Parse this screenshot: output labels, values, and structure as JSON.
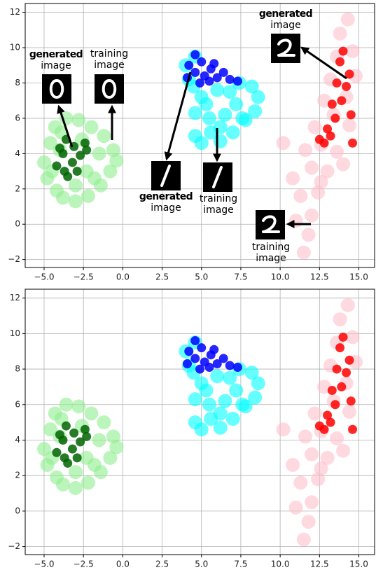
{
  "chart_data": [
    {
      "type": "scatter",
      "grid": true,
      "xlim": [
        -6.2,
        16.0
      ],
      "ylim": [
        -2.45,
        12.5
      ],
      "xticks": [
        {
          "value": -5,
          "label": "−5.0"
        },
        {
          "value": -2.5,
          "label": "−2.5"
        },
        {
          "value": 0,
          "label": "0.0"
        },
        {
          "value": 2.5,
          "label": "2.5"
        },
        {
          "value": 5,
          "label": "5.0"
        },
        {
          "value": 7.5,
          "label": "7.5"
        },
        {
          "value": 10,
          "label": "10.0"
        },
        {
          "value": 12.5,
          "label": "12.5"
        },
        {
          "value": 15,
          "label": "15.0"
        }
      ],
      "yticks": [
        {
          "value": -2,
          "label": "−2"
        },
        0,
        2,
        4,
        6,
        8,
        10,
        12
      ],
      "series": [
        {
          "color": "#90ee90",
          "x": [
            -5.0,
            -4.8,
            -4.6,
            -4.3,
            -4.2,
            -3.8,
            -3.6,
            -3.0,
            -2.8,
            -2.2,
            -2.0,
            -1.4,
            -1.2,
            -0.8,
            -0.6,
            -0.4,
            -4.5,
            -4.0,
            -2.3,
            -1.5,
            -3.0,
            -1.8,
            -3.9,
            -2.6
          ],
          "values": [
            3.5,
            2.6,
            4.6,
            5.5,
            1.9,
            1.5,
            6.0,
            1.3,
            5.9,
            1.6,
            5.5,
            2.2,
            5.0,
            3.0,
            4.2,
            3.6,
            3.0,
            4.2,
            3.0,
            4.0,
            2.2,
            2.6,
            5.2,
            4.8
          ]
        },
        {
          "color": "#00ffff",
          "x": [
            4.6,
            5.0,
            5.6,
            6.2,
            7.0,
            7.8,
            8.4,
            8.6,
            8.2,
            7.4,
            5.5,
            6.5,
            7.2,
            5.0,
            4.6,
            6.0,
            4.2,
            4.5,
            6.8,
            5.3,
            7.6,
            6.2,
            4.0,
            4.6
          ],
          "values": [
            5.0,
            4.6,
            5.2,
            4.7,
            5.2,
            5.9,
            6.4,
            7.2,
            7.8,
            8.0,
            6.0,
            6.2,
            6.8,
            7.2,
            6.3,
            7.6,
            8.2,
            7.8,
            7.5,
            6.8,
            6.0,
            5.5,
            9.0,
            9.5
          ]
        },
        {
          "color": "#ffc0cb",
          "x": [
            11.5,
            11.0,
            12.0,
            11.3,
            12.4,
            10.8,
            12.0,
            13.0,
            11.6,
            12.6,
            13.6,
            12.2,
            13.4,
            14.4,
            12.8,
            14.2,
            13.2,
            14.8,
            13.6,
            14.6,
            13.8,
            14.3,
            10.2,
            14.0,
            11.8,
            12.6
          ],
          "values": [
            -1.6,
            0.2,
            0.5,
            1.6,
            1.8,
            2.6,
            3.2,
            3.0,
            4.2,
            4.5,
            4.1,
            5.5,
            6.2,
            5.6,
            7.0,
            7.2,
            8.2,
            8.4,
            9.5,
            9.8,
            10.8,
            11.6,
            4.6,
            3.4,
            -0.6,
            2.4
          ]
        },
        {
          "color": "#006400",
          "x": [
            -4.2,
            -4.0,
            -3.7,
            -3.6,
            -3.2,
            -3.1,
            -2.7,
            -2.4,
            -3.5,
            -2.9,
            -3.8,
            -2.3
          ],
          "values": [
            3.3,
            4.3,
            3.0,
            4.8,
            3.5,
            4.4,
            3.9,
            4.6,
            2.7,
            3.0,
            4.0,
            4.2
          ]
        },
        {
          "color": "#0000ff",
          "x": [
            4.1,
            4.2,
            4.6,
            4.6,
            5.0,
            5.2,
            5.6,
            6.0,
            6.4,
            6.8,
            7.3,
            5.8,
            4.9,
            5.5
          ],
          "values": [
            8.3,
            9.0,
            9.6,
            8.6,
            9.2,
            8.4,
            8.8,
            8.3,
            8.6,
            8.2,
            8.1,
            9.1,
            8.0,
            8.1
          ]
        },
        {
          "color": "#ff0000",
          "x": [
            12.5,
            12.8,
            13.0,
            13.5,
            13.3,
            13.9,
            14.2,
            13.6,
            14.4,
            13.8,
            14.0,
            14.5,
            14.6,
            13.2
          ],
          "values": [
            4.8,
            4.6,
            5.4,
            6.0,
            6.8,
            7.0,
            7.8,
            8.0,
            8.5,
            9.2,
            9.8,
            6.2,
            4.6,
            5.0
          ]
        }
      ],
      "annotations": [
        {
          "lines": [
            "generated",
            "image"
          ]
        },
        {
          "lines": [
            "training",
            "image"
          ]
        },
        {
          "lines": [
            "generated",
            "image"
          ]
        },
        {
          "lines": [
            "generated",
            "image"
          ]
        },
        {
          "lines": [
            "training",
            "image"
          ]
        },
        {
          "lines": [
            "training",
            "image"
          ]
        }
      ]
    },
    {
      "type": "scatter",
      "grid": true,
      "xlim": [
        -6.2,
        16.0
      ],
      "ylim": [
        -2.45,
        12.5
      ],
      "xticks": [
        {
          "value": -5,
          "label": "−5.0"
        },
        {
          "value": -2.5,
          "label": "−2.5"
        },
        {
          "value": 0,
          "label": "0.0"
        },
        {
          "value": 2.5,
          "label": "2.5"
        },
        {
          "value": 5,
          "label": "5.0"
        },
        {
          "value": 7.5,
          "label": "7.5"
        },
        {
          "value": 10,
          "label": "10.0"
        },
        {
          "value": 12.5,
          "label": "12.5"
        },
        {
          "value": 15,
          "label": "15.0"
        }
      ],
      "yticks": [
        {
          "value": -2,
          "label": "−2"
        },
        0,
        2,
        4,
        6,
        8,
        10,
        12
      ],
      "series": [
        {
          "color": "#90ee90",
          "x": [
            -5.0,
            -4.8,
            -4.6,
            -4.3,
            -4.2,
            -3.8,
            -3.6,
            -3.0,
            -2.8,
            -2.2,
            -2.0,
            -1.4,
            -1.2,
            -0.8,
            -0.6,
            -0.4,
            -4.5,
            -4.0,
            -2.3,
            -1.5,
            -3.0,
            -1.8,
            -3.9,
            -2.6
          ],
          "values": [
            3.5,
            2.6,
            4.6,
            5.5,
            1.9,
            1.5,
            6.0,
            1.3,
            5.9,
            1.6,
            5.5,
            2.2,
            5.0,
            3.0,
            4.2,
            3.6,
            3.0,
            4.2,
            3.0,
            4.0,
            2.2,
            2.6,
            5.2,
            4.8
          ]
        },
        {
          "color": "#00ffff",
          "x": [
            4.6,
            5.0,
            5.6,
            6.2,
            7.0,
            7.8,
            8.4,
            8.6,
            8.2,
            7.4,
            5.5,
            6.5,
            7.2,
            5.0,
            4.6,
            6.0,
            4.2,
            4.5,
            6.8,
            5.3,
            7.6,
            6.2,
            4.0,
            4.6
          ],
          "values": [
            5.0,
            4.6,
            5.2,
            4.7,
            5.2,
            5.9,
            6.4,
            7.2,
            7.8,
            8.0,
            6.0,
            6.2,
            6.8,
            7.2,
            6.3,
            7.6,
            8.2,
            7.8,
            7.5,
            6.8,
            6.0,
            5.5,
            9.0,
            9.5
          ]
        },
        {
          "color": "#ffc0cb",
          "x": [
            11.5,
            11.0,
            12.0,
            11.3,
            12.4,
            10.8,
            12.0,
            13.0,
            11.6,
            12.6,
            13.6,
            12.2,
            13.4,
            14.4,
            12.8,
            14.2,
            13.2,
            14.8,
            13.6,
            14.6,
            13.8,
            14.3,
            10.2,
            14.0,
            11.8,
            12.6
          ],
          "values": [
            -1.6,
            0.2,
            0.5,
            1.6,
            1.8,
            2.6,
            3.2,
            3.0,
            4.2,
            4.5,
            4.1,
            5.5,
            6.2,
            5.6,
            7.0,
            7.2,
            8.2,
            8.4,
            9.5,
            9.8,
            10.8,
            11.6,
            4.6,
            3.4,
            -0.6,
            2.4
          ]
        },
        {
          "color": "#006400",
          "x": [
            -4.2,
            -4.0,
            -3.7,
            -3.6,
            -3.2,
            -3.1,
            -2.7,
            -2.4,
            -3.5,
            -2.9,
            -3.8,
            -2.3
          ],
          "values": [
            3.3,
            4.3,
            3.0,
            4.8,
            3.5,
            4.4,
            3.9,
            4.6,
            2.7,
            3.0,
            4.0,
            4.2
          ]
        },
        {
          "color": "#0000ff",
          "x": [
            4.1,
            4.2,
            4.6,
            4.6,
            5.0,
            5.2,
            5.6,
            6.0,
            6.4,
            6.8,
            7.3,
            5.8,
            4.9,
            5.5
          ],
          "values": [
            8.3,
            9.0,
            9.6,
            8.6,
            9.2,
            8.4,
            8.8,
            8.3,
            8.6,
            8.2,
            8.1,
            9.1,
            8.0,
            8.1
          ]
        },
        {
          "color": "#ff0000",
          "x": [
            12.5,
            12.8,
            13.0,
            13.5,
            13.3,
            13.9,
            14.2,
            13.6,
            14.4,
            13.8,
            14.0,
            14.5,
            14.6,
            13.2
          ],
          "values": [
            4.8,
            4.6,
            5.4,
            6.0,
            6.8,
            7.0,
            7.8,
            8.0,
            8.5,
            9.2,
            9.8,
            6.2,
            4.6,
            5.0
          ]
        }
      ]
    }
  ]
}
